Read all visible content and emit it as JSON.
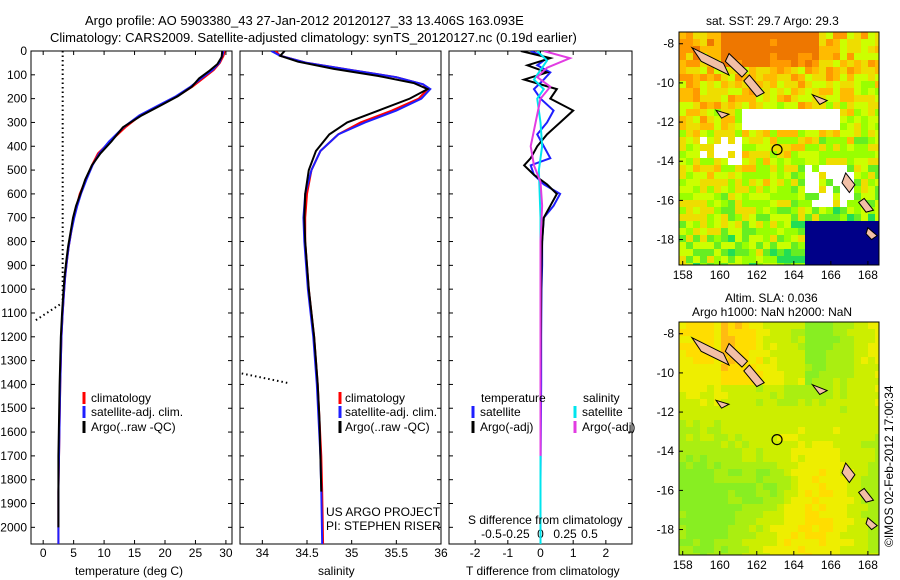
{
  "header": {
    "line1": "Argo profile: AO 5903380_43 27-Jan-2012 20120127_33 13.406S 163.093E",
    "line2": "Climatology: CARS2009. Satellite-adjusted climatology: synTS_20120127.nc (0.19d earlier)"
  },
  "colors": {
    "climatology": "#ff0000",
    "satellite": "#1f1fff",
    "argo": "#000000",
    "sal_satellite": "#00e5ee",
    "sal_argo": "#e23ce2"
  },
  "chart_data": [
    {
      "type": "line",
      "id": "temperature",
      "xlabel": "temperature (deg C)",
      "xlim": [
        -2,
        31
      ],
      "xticks": [
        0,
        5,
        10,
        15,
        20,
        25,
        30
      ],
      "ylim": [
        0,
        2070
      ],
      "yticks": [
        0,
        100,
        200,
        300,
        400,
        500,
        600,
        700,
        800,
        900,
        1000,
        1100,
        1200,
        1300,
        1400,
        1500,
        1600,
        1700,
        1800,
        1900,
        2000
      ],
      "legend": [
        "climatology",
        "satellite-adj. clim.",
        "Argo(..raw -QC)"
      ],
      "series": [
        {
          "name": "climatology",
          "color": "#ff0000",
          "x": [
            29.8,
            29.6,
            29,
            28,
            26.5,
            24.5,
            22,
            19,
            16,
            13.5,
            11,
            9,
            8,
            7,
            6,
            5.5,
            5,
            4.6,
            4.2,
            3.9,
            3.6,
            3.4,
            3.2,
            3.0,
            2.9,
            2.8,
            2.7,
            2.6,
            2.5,
            2.5,
            2.5
          ],
          "y": [
            0,
            20,
            50,
            80,
            110,
            150,
            190,
            230,
            270,
            320,
            380,
            430,
            480,
            540,
            600,
            650,
            700,
            760,
            820,
            880,
            950,
            1020,
            1100,
            1200,
            1300,
            1400,
            1550,
            1700,
            1850,
            2000,
            2070
          ]
        },
        {
          "name": "satellite",
          "color": "#1f1fff",
          "x": [
            29.6,
            29.4,
            28.9,
            27.8,
            26.2,
            24.2,
            21.8,
            18.8,
            15.8,
            13.2,
            10.8,
            9.2,
            8.1,
            7.1,
            6.2,
            5.6,
            5.1,
            4.6,
            4.2,
            3.9,
            3.6,
            3.4,
            3.2,
            3.0,
            2.9,
            2.8,
            2.7,
            2.6,
            2.5,
            2.5,
            2.5
          ],
          "y": [
            0,
            20,
            50,
            80,
            110,
            150,
            190,
            230,
            270,
            320,
            380,
            430,
            480,
            540,
            600,
            650,
            700,
            760,
            820,
            880,
            950,
            1020,
            1100,
            1200,
            1300,
            1400,
            1550,
            1700,
            1850,
            2000,
            2070
          ]
        },
        {
          "name": "argo",
          "color": "#000000",
          "x": [
            29.4,
            29.3,
            28.6,
            27.2,
            25.6,
            24.4,
            22.1,
            19.2,
            16.2,
            13.1,
            11.2,
            9.4,
            8.0,
            6.9,
            6.1,
            5.4,
            4.9,
            4.5,
            4.1,
            3.8,
            3.5,
            3.3,
            3.1,
            2.9,
            2.8,
            2.7,
            2.6,
            2.5,
            2.5,
            2.5
          ],
          "y": [
            0,
            25,
            55,
            85,
            115,
            150,
            190,
            230,
            270,
            320,
            380,
            430,
            480,
            540,
            600,
            650,
            700,
            760,
            820,
            880,
            950,
            1020,
            1100,
            1200,
            1300,
            1400,
            1550,
            1700,
            1850,
            2000
          ]
        }
      ],
      "dotted_ref": {
        "x": [
          3.2,
          3.2
        ],
        "y": [
          0,
          1050
        ]
      },
      "dotted_tail": {
        "x": [
          -1.2,
          3.6
        ],
        "y": [
          1130,
          1050
        ]
      }
    },
    {
      "type": "line",
      "id": "salinity",
      "xlabel": "salinity",
      "xlim": [
        33.75,
        36.0
      ],
      "xticks": [
        34,
        34.5,
        35,
        35.5,
        36
      ],
      "ylim": [
        0,
        2070
      ],
      "legend": [
        "climatology",
        "satellite-adj. clim.",
        "Argo(..raw -QC)"
      ],
      "annotations": [
        "US ARGO PROJECT",
        "PI: STEPHEN RISER"
      ],
      "series": [
        {
          "name": "climatology",
          "color": "#ff0000",
          "x": [
            34.15,
            34.2,
            34.5,
            35.0,
            35.5,
            35.8,
            35.85,
            35.75,
            35.45,
            35.1,
            34.85,
            34.65,
            34.55,
            34.5,
            34.48,
            34.48,
            34.5,
            34.52,
            34.55,
            34.58,
            34.6,
            34.62,
            34.64,
            34.66,
            34.67,
            34.68
          ],
          "y": [
            0,
            20,
            50,
            80,
            110,
            140,
            160,
            200,
            250,
            300,
            350,
            420,
            500,
            600,
            700,
            800,
            900,
            1000,
            1100,
            1200,
            1300,
            1400,
            1550,
            1700,
            1850,
            2070
          ]
        },
        {
          "name": "satellite",
          "color": "#1f1fff",
          "x": [
            34.1,
            34.2,
            34.5,
            35.0,
            35.5,
            35.8,
            35.88,
            35.78,
            35.5,
            35.15,
            34.85,
            34.65,
            34.55,
            34.48,
            34.46,
            34.47,
            34.49,
            34.51,
            34.54,
            34.57,
            34.59,
            34.61,
            34.63,
            34.65,
            34.66,
            34.67
          ],
          "y": [
            0,
            20,
            50,
            80,
            110,
            140,
            160,
            200,
            250,
            300,
            350,
            420,
            500,
            600,
            700,
            800,
            900,
            1000,
            1100,
            1200,
            1300,
            1400,
            1550,
            1700,
            1850,
            2070
          ]
        },
        {
          "name": "argo",
          "color": "#000000",
          "x": [
            34.25,
            34.2,
            34.4,
            34.8,
            35.3,
            35.7,
            35.85,
            35.65,
            35.3,
            34.95,
            34.75,
            34.6,
            34.52,
            34.48,
            34.47,
            34.48,
            34.5,
            34.52,
            34.55,
            34.58,
            34.6,
            34.62,
            34.64,
            34.65,
            34.66
          ],
          "y": [
            0,
            20,
            45,
            75,
            105,
            135,
            160,
            200,
            250,
            300,
            350,
            420,
            500,
            600,
            700,
            800,
            900,
            1000,
            1100,
            1200,
            1300,
            1400,
            1550,
            1700,
            1850
          ]
        }
      ],
      "dotted_tail": {
        "x": [
          33.72,
          34.3
        ],
        "y": [
          1350,
          1395
        ]
      }
    },
    {
      "type": "line",
      "id": "difference",
      "xlabel": "T difference from climatology",
      "xlabel_top": "S difference from climatology",
      "xlim": [
        -2.8,
        2.8
      ],
      "xticks": [
        -2,
        -1,
        0,
        1,
        2
      ],
      "xticks_top": [
        "-0.5",
        "-0.25",
        "0",
        "0.25",
        "0.5"
      ],
      "ylim": [
        0,
        2070
      ],
      "legend_title_left": "temperature",
      "legend_title_right": "salinity",
      "legend_left": [
        "satellite",
        "Argo(-adj)"
      ],
      "legend_right": [
        "satellite",
        "Argo(-adj)"
      ],
      "series": [
        {
          "name": "T satellite",
          "color": "#1f1fff",
          "x": [
            -0.3,
            0.2,
            -0.1,
            0.3,
            0.1,
            -0.2,
            0.0,
            0.4,
            0.2,
            -0.1,
            0.1,
            0.3,
            -0.3,
            -0.2,
            0.1,
            0.6,
            0.4,
            0.1,
            0.05,
            0.05,
            0.03,
            0.02,
            0.02,
            0.01,
            0.0,
            0.0
          ],
          "y": [
            0,
            30,
            60,
            90,
            120,
            160,
            200,
            250,
            300,
            350,
            400,
            450,
            480,
            520,
            560,
            600,
            650,
            700,
            800,
            900,
            1000,
            1200,
            1400,
            1600,
            1800,
            2070
          ]
        },
        {
          "name": "T Argo",
          "color": "#000000",
          "x": [
            -0.6,
            0.3,
            -0.4,
            0.2,
            -0.5,
            0.5,
            0.3,
            1.0,
            0.6,
            0.2,
            -0.1,
            -0.3,
            -0.5,
            -0.2,
            0.2,
            0.5,
            0.3,
            0.1,
            0.05,
            0.03,
            0.02,
            0.01,
            0.0,
            0.0,
            0.0
          ],
          "y": [
            0,
            30,
            60,
            90,
            120,
            160,
            200,
            250,
            300,
            350,
            400,
            450,
            480,
            520,
            560,
            600,
            650,
            700,
            800,
            900,
            1000,
            1200,
            1400,
            1600,
            2000
          ]
        },
        {
          "name": "S satellite",
          "color": "#00e5ee",
          "x": [
            -0.1,
            0.2,
            0.0,
            -0.2,
            0.1,
            -0.1,
            0.0,
            0.05,
            -0.05,
            0.0,
            0.0,
            0.0,
            0.0,
            0.0
          ],
          "y": [
            0,
            40,
            80,
            120,
            160,
            200,
            300,
            400,
            500,
            700,
            900,
            1300,
            1700,
            2070
          ]
        },
        {
          "name": "S Argo",
          "color": "#e23ce2",
          "x": [
            0.1,
            0.9,
            0.2,
            -0.1,
            0.3,
            0.0,
            -0.3,
            -0.2,
            0.0,
            0.05,
            0.0,
            0.0,
            0.0
          ],
          "y": [
            0,
            30,
            70,
            110,
            150,
            200,
            400,
            480,
            550,
            650,
            800,
            1200,
            1700
          ]
        }
      ]
    }
  ],
  "maps": [
    {
      "id": "sst",
      "title": "sat. SST: 29.7  Argo: 29.3",
      "xticks": [
        "158",
        "160",
        "162",
        "164",
        "166",
        "168"
      ],
      "yticks": [
        "-8",
        "-10",
        "-12",
        "-14",
        "-16",
        "-18"
      ],
      "marker": {
        "lon": 163.093,
        "lat": -13.406
      }
    },
    {
      "id": "sla",
      "title1": "Altim. SLA: 0.036",
      "title2": "Argo h1000: NaN  h2000: NaN",
      "xticks": [
        "158",
        "160",
        "162",
        "164",
        "166",
        "168"
      ],
      "yticks": [
        "-8",
        "-10",
        "-12",
        "-14",
        "-16",
        "-18"
      ],
      "marker": {
        "lon": 163.093,
        "lat": -13.406
      }
    }
  ],
  "footer_vertical": "©IMOS 02-Feb-2012 17:00:34"
}
